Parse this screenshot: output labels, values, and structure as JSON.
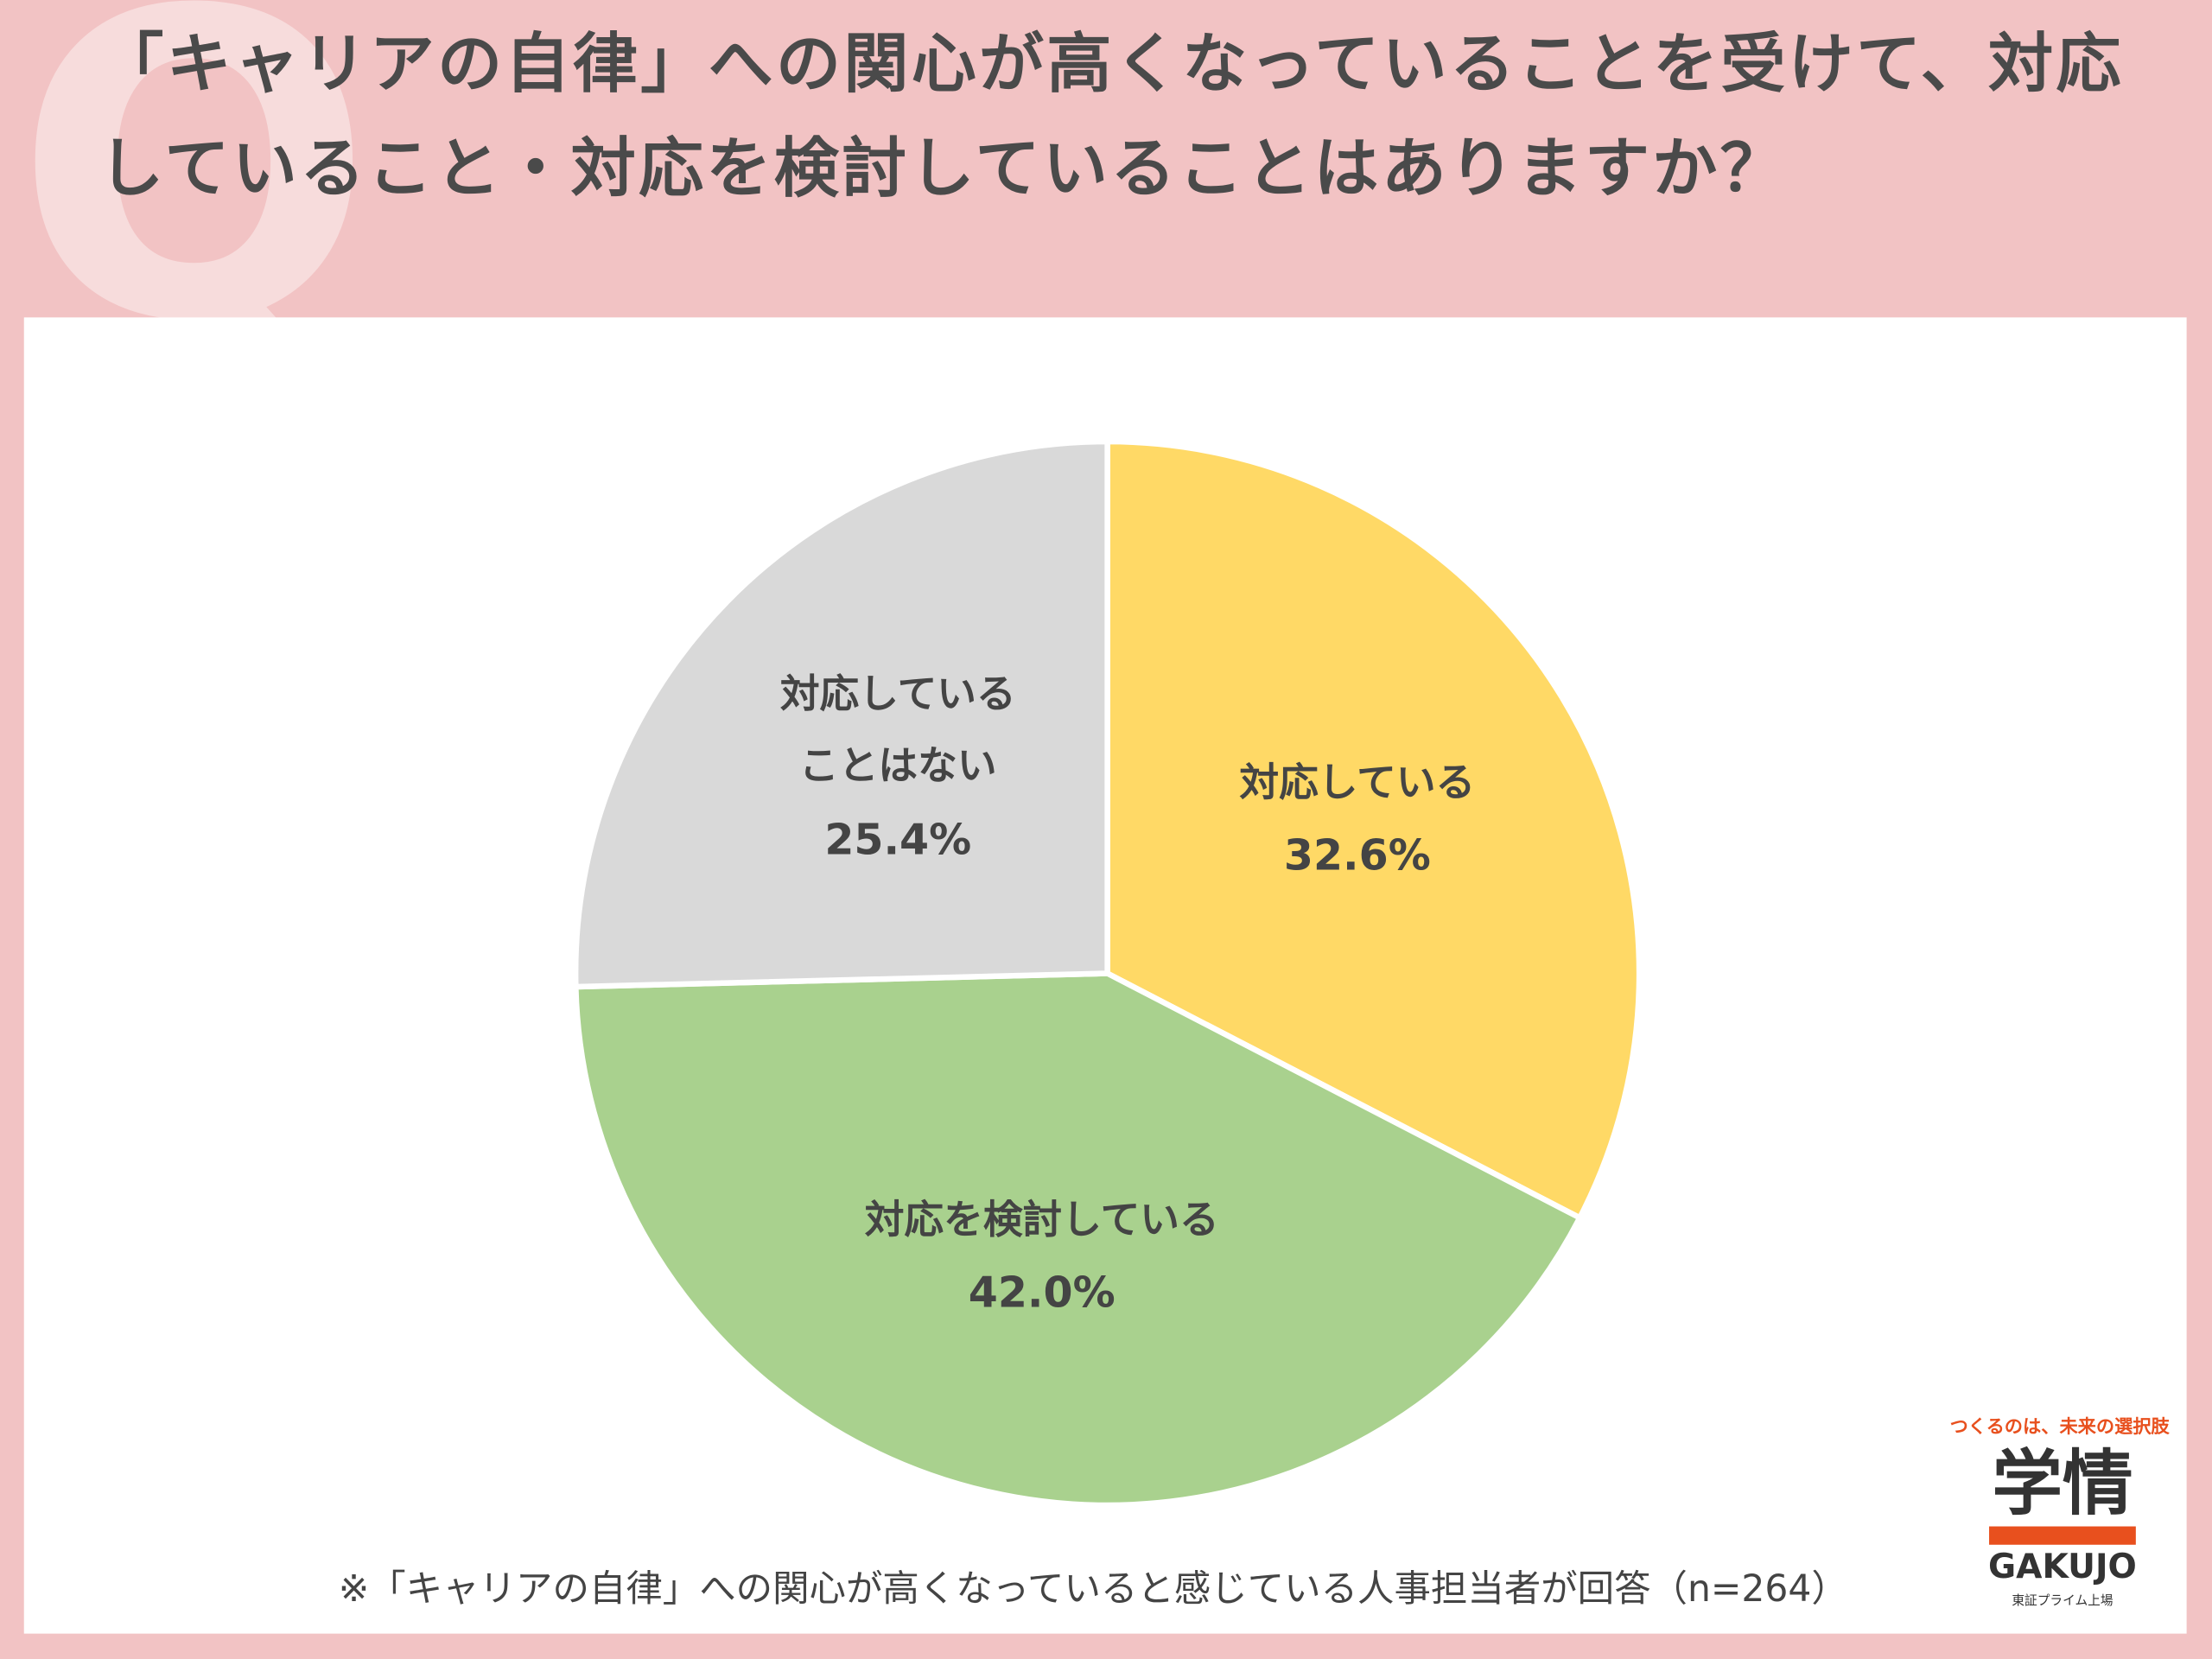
{
  "chart_data": {
    "type": "pie",
    "title": "「キャリアの自律」への関心が高くなっていることを受けて、対応していること・対応を検討していることはありますか？",
    "categories": [
      "対応している",
      "対応を検討している",
      "対応していることはない"
    ],
    "values": [
      32.6,
      42.0,
      25.4
    ],
    "value_labels": [
      "32.6%",
      "42.0%",
      "25.4%"
    ],
    "colors": [
      "#ffd966",
      "#a9d18e",
      "#d9d9d9"
    ],
    "note": "※「キャリアの自律」への関心が高くなっていると感じている人事担当者が回答（n=264）"
  },
  "logo": {
    "tagline": "つくるのは、未来の選択肢",
    "mark": "学情",
    "name": "GAKUJO",
    "sub": "東証プライム上場"
  }
}
